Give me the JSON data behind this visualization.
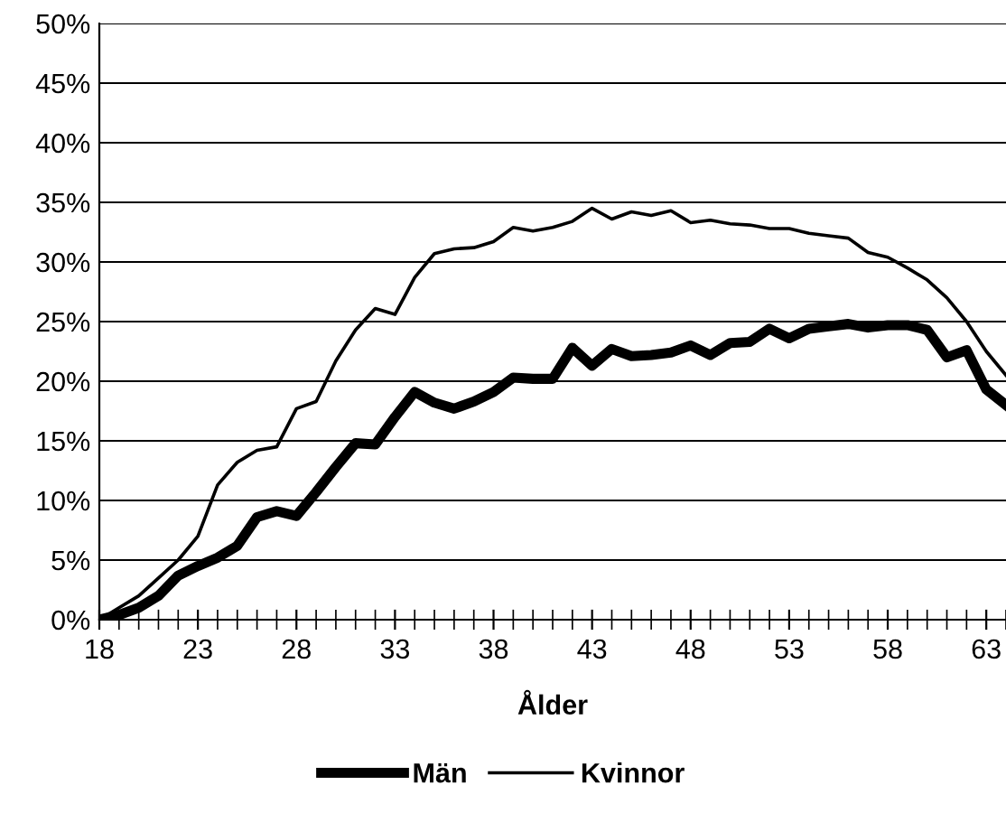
{
  "chart_data": {
    "type": "line",
    "xlabel": "Ålder",
    "x": [
      18,
      19,
      20,
      21,
      22,
      23,
      24,
      25,
      26,
      27,
      28,
      29,
      30,
      31,
      32,
      33,
      34,
      35,
      36,
      37,
      38,
      39,
      40,
      41,
      42,
      43,
      44,
      45,
      46,
      47,
      48,
      49,
      50,
      51,
      52,
      53,
      54,
      55,
      56,
      57,
      58,
      59,
      60,
      61,
      62,
      63,
      64
    ],
    "series": [
      {
        "name": "Män",
        "color": "#000000",
        "values": [
          0,
          0.4,
          1,
          2,
          3.7,
          4.5,
          5.2,
          6.2,
          8.6,
          9.1,
          8.7,
          10.7,
          12.8,
          14.8,
          14.7,
          17,
          19.1,
          18.2,
          17.7,
          18.3,
          19.1,
          20.3,
          20.2,
          20.2,
          22.8,
          21.3,
          22.7,
          22.1,
          22.2,
          22.4,
          23,
          22.2,
          23.2,
          23.3,
          24.4,
          23.6,
          24.4,
          24.6,
          24.8,
          24.5,
          24.7,
          24.7,
          24.3,
          22,
          22.6,
          19.3,
          18
        ]
      },
      {
        "name": "Kvinnor",
        "color": "#000000",
        "values": [
          0,
          1,
          2,
          3.5,
          5,
          7,
          11.3,
          13.2,
          14.2,
          14.5,
          17.7,
          18.3,
          21.7,
          24.3,
          26.1,
          25.6,
          28.7,
          30.7,
          31.1,
          31.2,
          31.7,
          32.9,
          32.6,
          32.9,
          33.4,
          34.5,
          33.6,
          34.2,
          33.9,
          34.3,
          33.3,
          33.5,
          33.2,
          33.1,
          32.8,
          32.8,
          32.4,
          32.2,
          32,
          30.8,
          30.4,
          29.5,
          28.5,
          27,
          25,
          22.5,
          20.5
        ]
      }
    ],
    "xlim": [
      18,
      64
    ],
    "xticks": [
      18,
      23,
      28,
      33,
      38,
      43,
      48,
      53,
      58,
      63
    ],
    "ylim": [
      0,
      50
    ],
    "yticks": [
      {
        "value": 0,
        "label": "0%"
      },
      {
        "value": 5,
        "label": "5%"
      },
      {
        "value": 10,
        "label": "10%"
      },
      {
        "value": 15,
        "label": "15%"
      },
      {
        "value": 20,
        "label": "20%"
      },
      {
        "value": 25,
        "label": "25%"
      },
      {
        "value": 30,
        "label": "30%"
      },
      {
        "value": 35,
        "label": "35%"
      },
      {
        "value": 40,
        "label": "40%"
      },
      {
        "value": 45,
        "label": "45%"
      },
      {
        "value": 50,
        "label": "50%"
      }
    ],
    "grid": "y",
    "legend": "bottom",
    "marker": "none",
    "line_style": "solid"
  }
}
